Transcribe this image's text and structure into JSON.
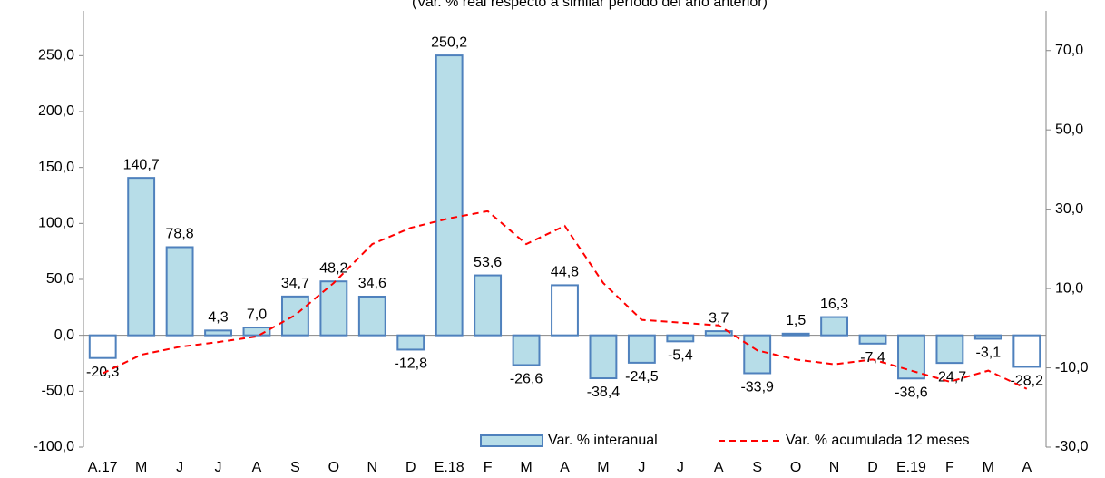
{
  "chart_data": {
    "type": "bar-line",
    "title": "(Var. % real respecto a similar período del año anterior)",
    "categories": [
      "A.17",
      "M",
      "J",
      "J",
      "A",
      "S",
      "O",
      "N",
      "D",
      "E.18",
      "F",
      "M",
      "A",
      "M",
      "J",
      "J",
      "A",
      "S",
      "O",
      "N",
      "D",
      "E.19",
      "F",
      "M",
      "A"
    ],
    "series": [
      {
        "name": "Var. % interanual",
        "type": "bar",
        "color": "#b7dde8",
        "stroke": "#4f81bd",
        "point_colors": [
          "#ffffff",
          "#b7dde8",
          "#b7dde8",
          "#b7dde8",
          "#b7dde8",
          "#b7dde8",
          "#b7dde8",
          "#b7dde8",
          "#b7dde8",
          "#b7dde8",
          "#b7dde8",
          "#b7dde8",
          "#ffffff",
          "#b7dde8",
          "#b7dde8",
          "#b7dde8",
          "#b7dde8",
          "#b7dde8",
          "#b7dde8",
          "#b7dde8",
          "#b7dde8",
          "#b7dde8",
          "#b7dde8",
          "#b7dde8",
          "#ffffff"
        ],
        "values": [
          -20.3,
          140.7,
          78.8,
          4.3,
          7.0,
          34.7,
          48.2,
          34.6,
          -12.8,
          250.2,
          53.6,
          -26.6,
          44.8,
          -38.4,
          -24.5,
          -5.4,
          3.7,
          -33.9,
          1.5,
          16.3,
          -7.4,
          -38.6,
          -24.7,
          -3.1,
          -28.2
        ],
        "value_labels": [
          "-20,3",
          "140,7",
          "78,8",
          "4,3",
          "7,0",
          "34,7",
          "48,2",
          "34,6",
          "-12,8",
          "250,2",
          "53,6",
          "-26,6",
          "44,8",
          "-38,4",
          "-24,5",
          "-5,4",
          "3,7",
          "-33,9",
          "1,5",
          "16,3",
          "-7,4",
          "-38,6",
          "-24,7",
          "-3,1",
          "-28,2"
        ]
      },
      {
        "name": "Var. % acumulada 12 meses",
        "type": "line",
        "axis": "y2",
        "color": "#ff0000",
        "dashed": true,
        "values": [
          -11.4,
          -6.7,
          -4.7,
          -3.5,
          -2.1,
          3.3,
          11.4,
          21.2,
          25.3,
          27.7,
          29.5,
          21.2,
          25.8,
          11.4,
          2.1,
          1.4,
          0.7,
          -5.6,
          -7.9,
          -9.1,
          -7.9,
          -10.7,
          -13.5,
          -10.7,
          -15.3
        ]
      }
    ],
    "ylim": [
      -100,
      290
    ],
    "yticks": [
      {
        "value": -100,
        "label": "-100,0"
      },
      {
        "value": -50,
        "label": "-50,0"
      },
      {
        "value": 0,
        "label": "0,0"
      },
      {
        "value": 50,
        "label": "50,0"
      },
      {
        "value": 100,
        "label": "100,0"
      },
      {
        "value": 150,
        "label": "150,0"
      },
      {
        "value": 200,
        "label": "200,0"
      },
      {
        "value": 250,
        "label": "250,0"
      }
    ],
    "y2lim": [
      -30,
      80
    ],
    "y2ticks": [
      {
        "value": -30,
        "label": "-30,0"
      },
      {
        "value": -10,
        "label": "-10,0"
      },
      {
        "value": 10,
        "label": "10,0"
      },
      {
        "value": 30,
        "label": "30,0"
      },
      {
        "value": 50,
        "label": "50,0"
      },
      {
        "value": 70,
        "label": "70,0"
      }
    ],
    "legend": "bottom-right"
  }
}
